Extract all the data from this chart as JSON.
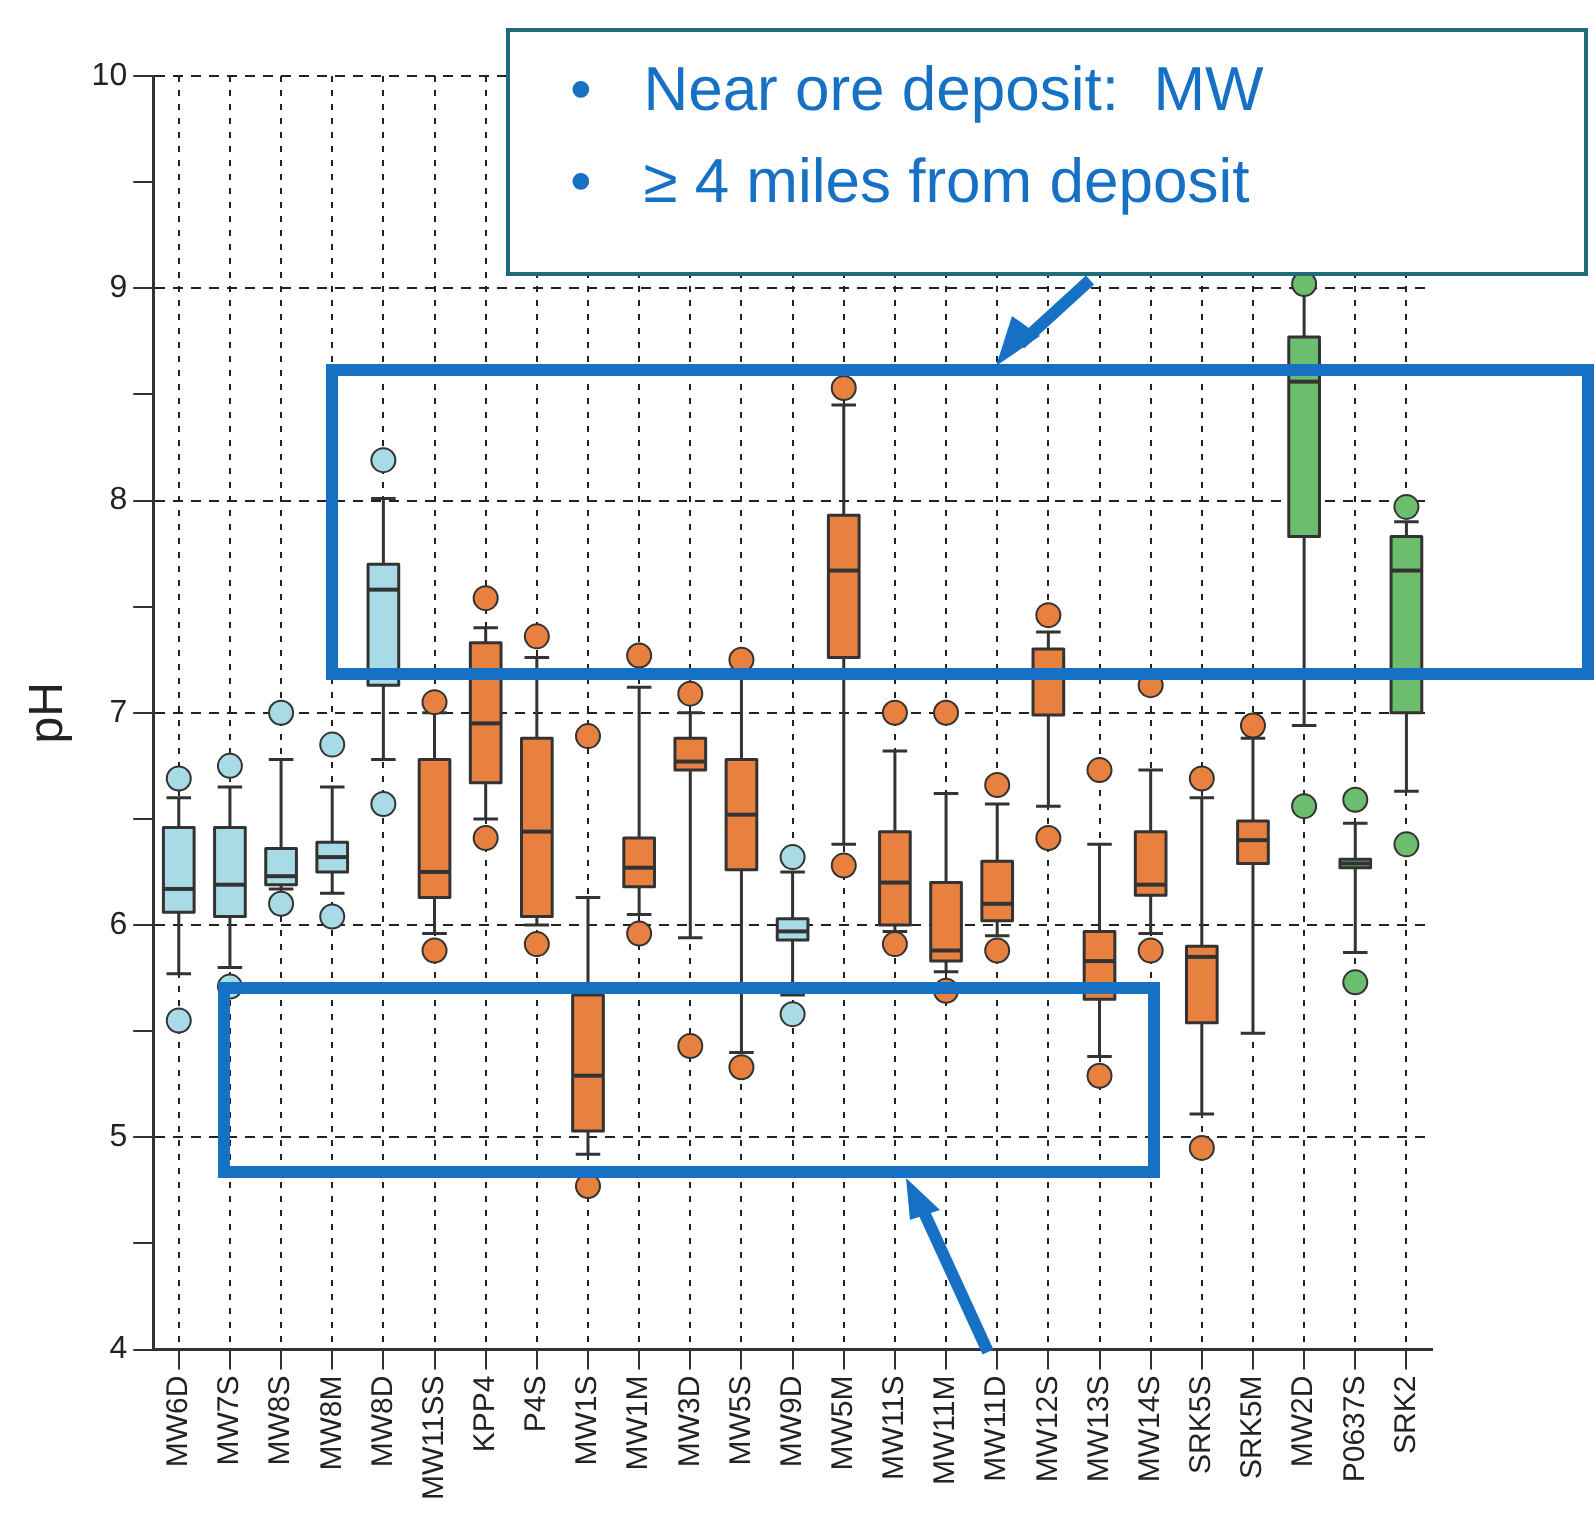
{
  "chart_data": {
    "type": "box",
    "ylabel": "pH",
    "categories": [
      "MW6D",
      "MW7S",
      "MW8S",
      "MW8M",
      "MW8D",
      "MW11SS",
      "KPP4",
      "P4S",
      "MW1S",
      "MW1M",
      "MW3D",
      "MW5S",
      "MW9D",
      "MW5M",
      "MW11S",
      "MW11M",
      "MW11D",
      "MW12S",
      "MW13S",
      "MW14S",
      "SRK5S",
      "SRK5M",
      "MW2D",
      "P0637S",
      "SRK2"
    ],
    "colors": [
      "#a9dbe6",
      "#a9dbe6",
      "#a9dbe6",
      "#a9dbe6",
      "#a9dbe6",
      "#e8803f",
      "#e8803f",
      "#e8803f",
      "#e8803f",
      "#e8803f",
      "#e8803f",
      "#e8803f",
      "#a9dbe6",
      "#e8803f",
      "#e8803f",
      "#e8803f",
      "#e8803f",
      "#e8803f",
      "#e8803f",
      "#e8803f",
      "#e8803f",
      "#e8803f",
      "#6dbd6f",
      "#6dbd6f",
      "#6dbd6f"
    ],
    "boxes": [
      {
        "low": 5.77,
        "q1": 6.06,
        "median": 6.17,
        "q3": 6.46,
        "high": 6.6,
        "outliers": [
          6.69,
          5.55
        ]
      },
      {
        "low": 5.8,
        "q1": 6.04,
        "median": 6.19,
        "q3": 6.46,
        "high": 6.65,
        "outliers": [
          6.75,
          5.71
        ]
      },
      {
        "low": 6.17,
        "q1": 6.19,
        "median": 6.23,
        "q3": 6.36,
        "high": 6.78,
        "outliers": [
          7.0,
          6.1
        ]
      },
      {
        "low": 6.15,
        "q1": 6.25,
        "median": 6.32,
        "q3": 6.39,
        "high": 6.65,
        "outliers": [
          6.85,
          6.04
        ]
      },
      {
        "low": 6.78,
        "q1": 7.13,
        "median": 7.58,
        "q3": 7.7,
        "high": 8.01,
        "outliers": [
          8.19,
          6.57
        ]
      },
      {
        "low": 5.96,
        "q1": 6.13,
        "median": 6.25,
        "q3": 6.78,
        "high": 7.0,
        "outliers": [
          7.05,
          5.88
        ]
      },
      {
        "low": 6.5,
        "q1": 6.67,
        "median": 6.95,
        "q3": 7.33,
        "high": 7.4,
        "outliers": [
          7.54,
          6.41
        ]
      },
      {
        "low": 6.0,
        "q1": 6.04,
        "median": 6.44,
        "q3": 6.88,
        "high": 7.26,
        "outliers": [
          7.36,
          5.91
        ]
      },
      {
        "low": 4.92,
        "q1": 5.03,
        "median": 5.29,
        "q3": 5.67,
        "high": 6.13,
        "outliers": [
          6.89,
          4.77
        ]
      },
      {
        "low": 6.05,
        "q1": 6.18,
        "median": 6.27,
        "q3": 6.41,
        "high": 7.12,
        "outliers": [
          7.27,
          5.96
        ]
      },
      {
        "low": 5.94,
        "q1": 6.73,
        "median": 6.77,
        "q3": 6.88,
        "high": 7.0,
        "outliers": [
          7.09,
          5.43
        ]
      },
      {
        "low": 5.4,
        "q1": 6.26,
        "median": 6.52,
        "q3": 6.78,
        "high": 7.2,
        "outliers": [
          7.25,
          5.33
        ]
      },
      {
        "low": 5.67,
        "q1": 5.93,
        "median": 5.97,
        "q3": 6.03,
        "high": 6.25,
        "outliers": [
          6.32,
          5.58
        ]
      },
      {
        "low": 6.38,
        "q1": 7.26,
        "median": 7.67,
        "q3": 7.93,
        "high": 8.45,
        "outliers": [
          8.53,
          6.28
        ]
      },
      {
        "low": 5.97,
        "q1": 6.0,
        "median": 6.2,
        "q3": 6.44,
        "high": 6.82,
        "outliers": [
          7.0,
          5.91
        ]
      },
      {
        "low": 5.78,
        "q1": 5.83,
        "median": 5.88,
        "q3": 6.2,
        "high": 6.62,
        "outliers": [
          7.0,
          5.69
        ]
      },
      {
        "low": 5.95,
        "q1": 6.02,
        "median": 6.1,
        "q3": 6.3,
        "high": 6.57,
        "outliers": [
          6.66,
          5.88
        ]
      },
      {
        "low": 6.56,
        "q1": 6.99,
        "median": 7.2,
        "q3": 7.3,
        "high": 7.38,
        "outliers": [
          7.46,
          6.41
        ]
      },
      {
        "low": 5.38,
        "q1": 5.65,
        "median": 5.83,
        "q3": 5.97,
        "high": 6.38,
        "outliers": [
          6.73,
          5.29
        ]
      },
      {
        "low": 5.96,
        "q1": 6.14,
        "median": 6.19,
        "q3": 6.44,
        "high": 6.73,
        "outliers": [
          7.13,
          5.88
        ]
      },
      {
        "low": 5.11,
        "q1": 5.54,
        "median": 5.85,
        "q3": 5.9,
        "high": 6.6,
        "outliers": [
          6.69,
          4.95
        ]
      },
      {
        "low": 5.49,
        "q1": 6.29,
        "median": 6.4,
        "q3": 6.49,
        "high": 6.88,
        "outliers": [
          6.94
        ]
      },
      {
        "low": 6.94,
        "q1": 7.83,
        "median": 8.56,
        "q3": 8.77,
        "high": 9.0,
        "outliers": [
          9.02,
          6.56
        ]
      },
      {
        "low": 5.87,
        "q1": 6.27,
        "median": 6.29,
        "q3": 6.31,
        "high": 6.48,
        "outliers": [
          6.59,
          5.73
        ]
      },
      {
        "low": 6.63,
        "q1": 7.0,
        "median": 7.67,
        "q3": 7.83,
        "high": 7.9,
        "outliers": [
          7.97,
          6.38
        ]
      }
    ],
    "ylim": [
      4,
      10
    ],
    "yticks": [
      4,
      {
        "value": 4.5,
        "label": null
      },
      5,
      {
        "value": 5.5,
        "label": null
      },
      6,
      {
        "value": 6.5,
        "label": null
      },
      7,
      {
        "value": 7.5,
        "label": null
      },
      8,
      {
        "value": 8.5,
        "label": null
      },
      9,
      {
        "value": 9.5,
        "label": null
      },
      10
    ],
    "grid": true,
    "legend": false,
    "annotations": [
      "•   Near ore deposit:  MW",
      "•   ≥ 4 miles from deposit"
    ]
  }
}
